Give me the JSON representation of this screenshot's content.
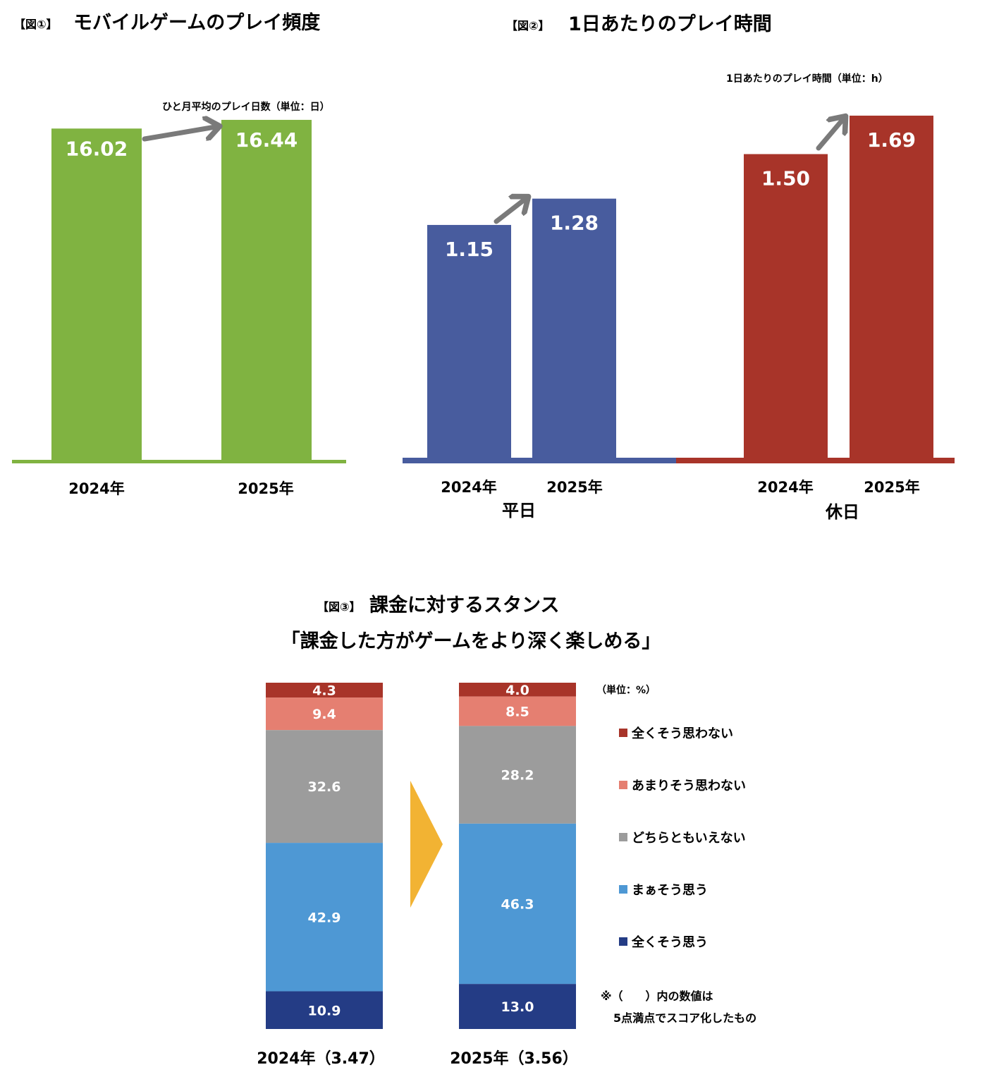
{
  "colors": {
    "green": "#80b341",
    "blue": "#485c9e",
    "red": "#a83429",
    "arrow": "#7a7a7a",
    "chevron": "#f2b333"
  },
  "fig1": {
    "prefix": "【図①】",
    "title": "モバイルゲームのプレイ頻度",
    "note": "ひと月平均のプレイ日数（単位：日）"
  },
  "fig2": {
    "prefix": "【図②】",
    "title": "1日あたりのプレイ時間",
    "note": "1日あたりのプレイ時間（単位：h）"
  },
  "fig3": {
    "prefix": "【図③】",
    "title": "課金に対するスタンス",
    "subtitle": "「課金した方がゲームをより深く楽しめる」",
    "unit": "（単位：%）",
    "footnote_1": "※（　　）内の数値は",
    "footnote_2": "5点満点でスコア化したもの"
  },
  "chart_data": [
    {
      "type": "bar",
      "title": "モバイルゲームのプレイ頻度",
      "categories": [
        "2024年",
        "2025年"
      ],
      "values": [
        16.02,
        16.44
      ],
      "value_labels": [
        "16.02",
        "16.44"
      ],
      "color": "#80b341"
    },
    {
      "type": "bar",
      "title": "1日あたりのプレイ時間",
      "groups": [
        {
          "name": "平日",
          "categories": [
            "2024年",
            "2025年"
          ],
          "values": [
            1.15,
            1.28
          ],
          "value_labels": [
            "1.15",
            "1.28"
          ],
          "color": "#485c9e"
        },
        {
          "name": "休日",
          "categories": [
            "2024年",
            "2025年"
          ],
          "values": [
            1.5,
            1.69
          ],
          "value_labels": [
            "1.50",
            "1.69"
          ],
          "color": "#a83429"
        }
      ]
    },
    {
      "type": "bar",
      "stacked": true,
      "title": "課金に対するスタンス",
      "categories": [
        "2024年（3.47）",
        "2025年（3.56）"
      ],
      "series": [
        {
          "name": "全くそう思わない",
          "color": "#a83429",
          "values": [
            4.3,
            4.0
          ],
          "value_labels": [
            "4.3",
            "4.0"
          ]
        },
        {
          "name": "あまりそう思わない",
          "color": "#e57f71",
          "values": [
            9.4,
            8.5
          ],
          "value_labels": [
            "9.4",
            "8.5"
          ]
        },
        {
          "name": "どちらともいえない",
          "color": "#9c9c9c",
          "values": [
            32.6,
            28.2
          ],
          "value_labels": [
            "32.6",
            "28.2"
          ]
        },
        {
          "name": "まぁそう思う",
          "color": "#4e98d4",
          "values": [
            42.9,
            46.3
          ],
          "value_labels": [
            "42.9",
            "46.3"
          ]
        },
        {
          "name": "全くそう思う",
          "color": "#243c85",
          "values": [
            10.9,
            13.0
          ],
          "value_labels": [
            "10.9",
            "13.0"
          ]
        }
      ]
    }
  ]
}
